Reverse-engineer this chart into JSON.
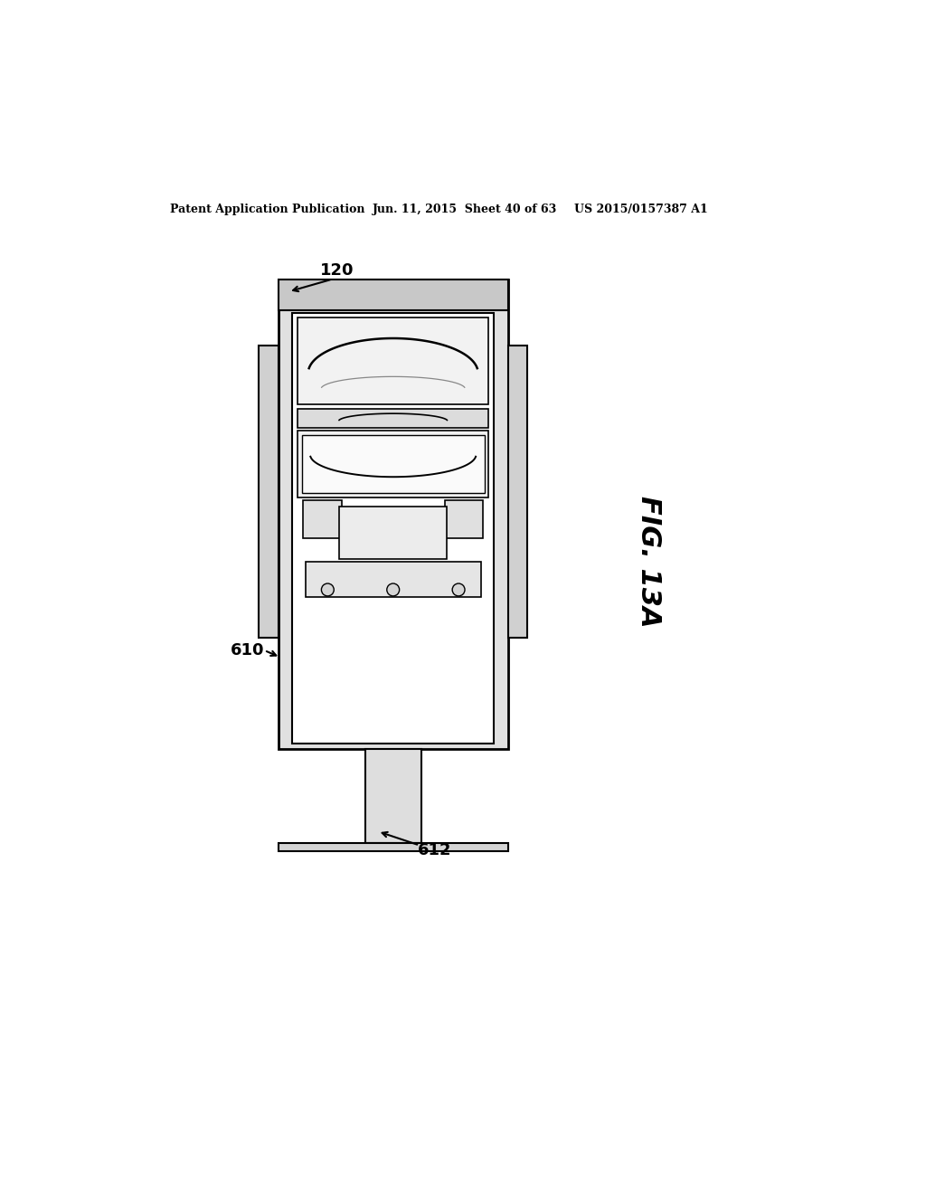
{
  "bg_color": "#ffffff",
  "header_left": "Patent Application Publication",
  "header_mid": "Jun. 11, 2015  Sheet 40 of 63",
  "header_right": "US 2015/0157387 A1",
  "fig_label": "FIG. 13A",
  "label_120": "120",
  "label_610": "610",
  "label_612": "612",
  "line_color": "#000000"
}
